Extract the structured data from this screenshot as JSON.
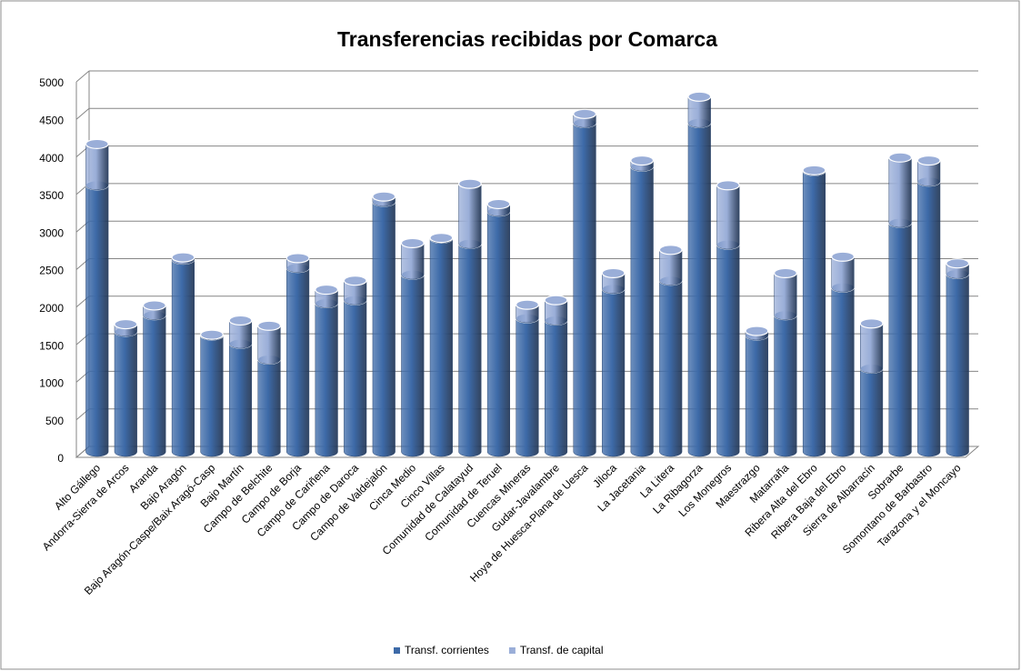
{
  "chart_data": {
    "type": "bar3d_stacked",
    "title": "Transferencias recibidas por Comarca",
    "categories": [
      "Alto Gállego",
      "Andorra-Sierra de Arcos",
      "Aranda",
      "Bajo Aragón",
      "Bajo Aragón-Caspe/Baix Aragó-Casp",
      "Bajo Martín",
      "Campo de Belchite",
      "Campo de Borja",
      "Campo de Cariñena",
      "Campo de Daroca",
      "Campo de Valdejalón",
      "Cinca Medio",
      "Cinco Villas",
      "Comunidad de Calatayud",
      "Comunidad de Teruel",
      "Cuencas Mineras",
      "Gudar-Javalambre",
      "Hoya de Huesca-Plana de Uesca",
      "Jiloca",
      "La Jacetania",
      "La Litera",
      "La Ribagorza",
      "Los Monegros",
      "Maestrazgo",
      "Matarraña",
      "Ribera Alta del Ebro",
      "Ribera Baja del Ebro",
      "Sierra de Albarracín",
      "Sobrarbe",
      "Somontano de Barbastro",
      "Tarazona y el Moncayo"
    ],
    "series": [
      {
        "name": "Transf. corrientes",
        "color": "#3d6aa8",
        "values": [
          3550,
          1600,
          1820,
          2560,
          1550,
          1440,
          1230,
          2450,
          1980,
          2020,
          3330,
          2360,
          2840,
          2770,
          3200,
          1780,
          1750,
          4380,
          2170,
          3800,
          2280,
          4380,
          2760,
          1550,
          1820,
          3740,
          2190,
          1110,
          3050,
          3600,
          2370
        ]
      },
      {
        "name": "Transf. de capital",
        "color": "#9aaed8",
        "values": [
          550,
          100,
          130,
          30,
          10,
          310,
          450,
          130,
          180,
          260,
          70,
          420,
          10,
          800,
          100,
          180,
          270,
          120,
          210,
          80,
          410,
          350,
          790,
          60,
          560,
          10,
          410,
          600,
          870,
          280,
          140
        ]
      }
    ],
    "ylim": [
      0,
      5000
    ],
    "yticks": [
      0,
      500,
      1000,
      1500,
      2000,
      2500,
      3000,
      3500,
      4000,
      4500,
      5000
    ],
    "grid": true,
    "legend": "bottom"
  }
}
